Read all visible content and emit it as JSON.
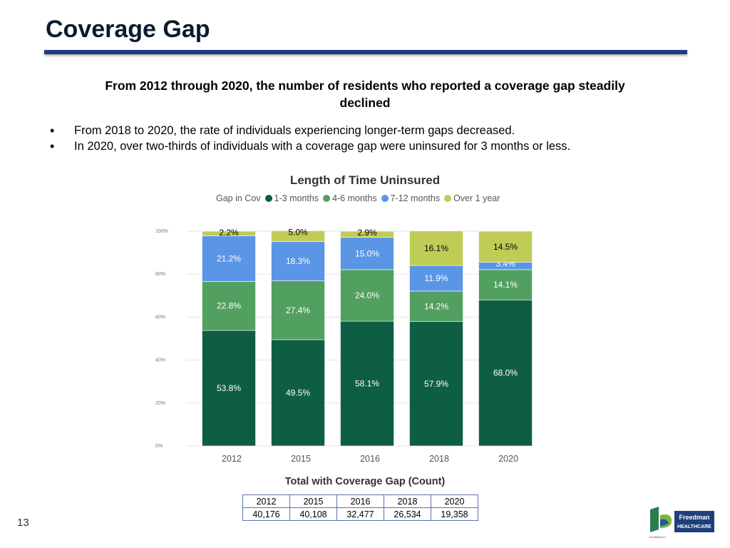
{
  "slide": {
    "title": "Coverage Gap",
    "subtitle": "From 2012 through 2020, the number of residents who reported a coverage gap steadily declined",
    "bullets": [
      "From 2018 to 2020, the rate of individuals experiencing longer-term gaps decreased.",
      "In 2020, over two-thirds of individuals with a coverage gap were uninsured for 3 months or less."
    ],
    "page_number": "13",
    "logo": {
      "text_top": "Freedman",
      "text_bottom": "HEALTHCARE",
      "caption": "HealthBound"
    }
  },
  "chart_data": {
    "type": "bar",
    "stacked": true,
    "title": "Length of Time Uninsured",
    "legend_title": "Gap in Cov",
    "categories": [
      "2012",
      "2015",
      "2016",
      "2018",
      "2020"
    ],
    "series": [
      {
        "name": "1-3 months",
        "color": "#0e5e45",
        "values": [
          53.8,
          49.5,
          58.1,
          57.9,
          68.0
        ],
        "labels": [
          "53.8%",
          "49.5%",
          "58.1%",
          "57.9%",
          "68.0%"
        ]
      },
      {
        "name": "4-6 months",
        "color": "#52a060",
        "values": [
          22.8,
          27.4,
          24.0,
          14.2,
          14.1
        ],
        "labels": [
          "22.8%",
          "27.4%",
          "24.0%",
          "14.2%",
          "14.1%"
        ]
      },
      {
        "name": "7-12 months",
        "color": "#5b95e6",
        "values": [
          21.2,
          18.3,
          15.0,
          11.9,
          3.4
        ],
        "labels": [
          "21.2%",
          "18.3%",
          "15.0%",
          "11.9%",
          "3.4%"
        ]
      },
      {
        "name": "Over 1 year",
        "color": "#bfcd56",
        "values": [
          2.2,
          5.0,
          2.9,
          16.1,
          14.5
        ],
        "labels": [
          "2.2%",
          "5.0%",
          "2.9%",
          "16.1%",
          "14.5%"
        ]
      }
    ],
    "y_ticks": [
      "0%",
      "20%",
      "40%",
      "60%",
      "80%",
      "100%"
    ],
    "ylim": [
      0,
      100
    ],
    "grid": true
  },
  "count_table": {
    "title": "Total with Coverage Gap (Count)",
    "years": [
      "2012",
      "2015",
      "2016",
      "2018",
      "2020"
    ],
    "counts": [
      "40,176",
      "40,108",
      "32,477",
      "26,534",
      "19,358"
    ]
  }
}
